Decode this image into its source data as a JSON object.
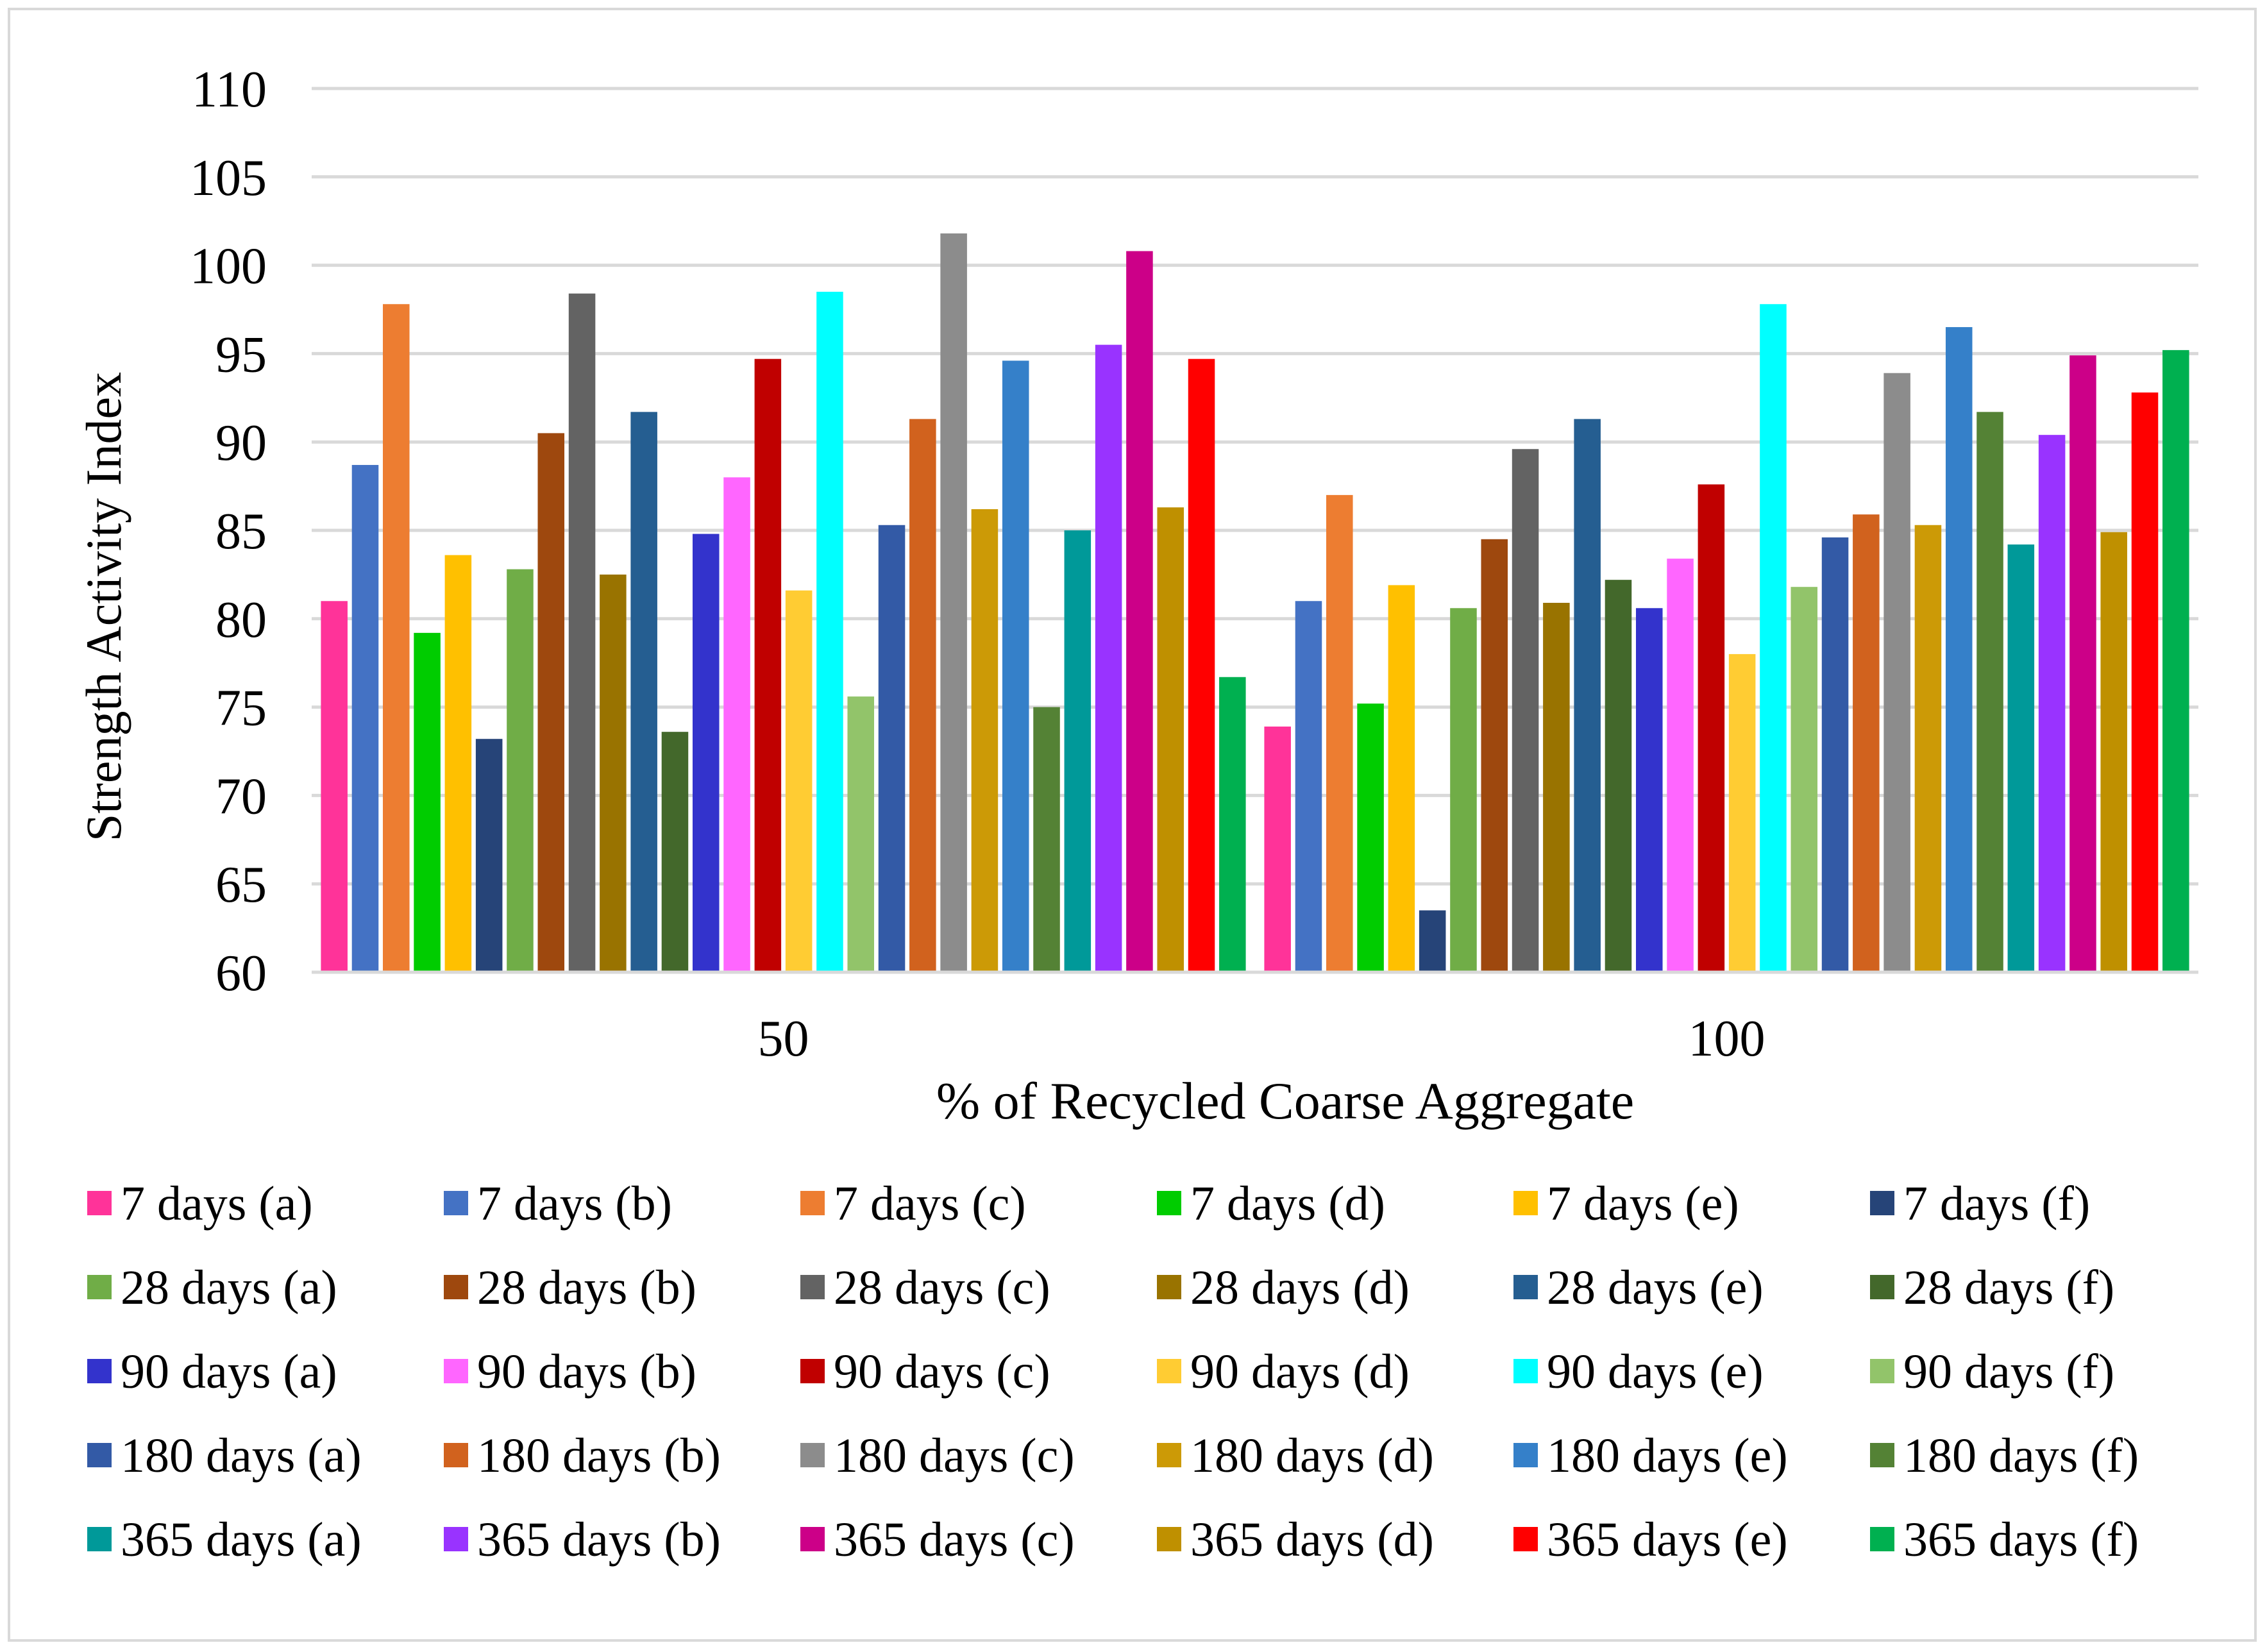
{
  "chart_data": {
    "type": "bar",
    "title": "",
    "xlabel": "% of Recycled Coarse Aggregate",
    "ylabel": "Strength Activity Index",
    "ylim": [
      60,
      110
    ],
    "ytick_step": 5,
    "grid": true,
    "legend_position": "bottom",
    "categories": [
      "50",
      "100"
    ],
    "series": [
      {
        "name": "7 days (a)",
        "color": "#FF3399",
        "values": [
          81.0,
          73.9
        ]
      },
      {
        "name": "7 days (b)",
        "color": "#4472C4",
        "values": [
          88.7,
          81.0
        ]
      },
      {
        "name": "7 days (c)",
        "color": "#ED7D31",
        "values": [
          97.8,
          87.0
        ]
      },
      {
        "name": "7 days (d)",
        "color": "#00CC00",
        "values": [
          79.2,
          75.2
        ]
      },
      {
        "name": "7 days (e)",
        "color": "#FFC000",
        "values": [
          83.6,
          81.9
        ]
      },
      {
        "name": "7 days (f)",
        "color": "#264478",
        "values": [
          73.2,
          63.5
        ]
      },
      {
        "name": "28 days (a)",
        "color": "#70AD47",
        "values": [
          82.8,
          80.6
        ]
      },
      {
        "name": "28 days (b)",
        "color": "#9E480E",
        "values": [
          90.5,
          84.5
        ]
      },
      {
        "name": "28 days (c)",
        "color": "#636363",
        "values": [
          98.4,
          89.6
        ]
      },
      {
        "name": "28 days (d)",
        "color": "#997300",
        "values": [
          82.5,
          80.9
        ]
      },
      {
        "name": "28 days (e)",
        "color": "#255E91",
        "values": [
          91.7,
          91.3
        ]
      },
      {
        "name": "28 days (f)",
        "color": "#43682B",
        "values": [
          73.6,
          82.2
        ]
      },
      {
        "name": "90 days (a)",
        "color": "#3333CC",
        "values": [
          84.8,
          80.6
        ]
      },
      {
        "name": "90 days (b)",
        "color": "#FF66FF",
        "values": [
          88.0,
          83.4
        ]
      },
      {
        "name": "90 days (c)",
        "color": "#C00000",
        "values": [
          94.7,
          87.6
        ]
      },
      {
        "name": "90 days (d)",
        "color": "#FFCC33",
        "values": [
          81.6,
          78.0
        ]
      },
      {
        "name": "90 days (e)",
        "color": "#00FFFF",
        "values": [
          98.5,
          97.8
        ]
      },
      {
        "name": "90 days (f)",
        "color": "#92C46A",
        "values": [
          75.6,
          81.8
        ]
      },
      {
        "name": "180 days (a)",
        "color": "#335AA6",
        "values": [
          85.3,
          84.6
        ]
      },
      {
        "name": "180 days (b)",
        "color": "#D1621E",
        "values": [
          91.3,
          85.9
        ]
      },
      {
        "name": "180 days (c)",
        "color": "#8C8C8C",
        "values": [
          101.8,
          93.9
        ]
      },
      {
        "name": "180 days (d)",
        "color": "#CC9A06",
        "values": [
          86.2,
          85.3
        ]
      },
      {
        "name": "180 days (e)",
        "color": "#3580C9",
        "values": [
          94.6,
          96.5
        ]
      },
      {
        "name": "180 days (f)",
        "color": "#548235",
        "values": [
          75.0,
          91.7
        ]
      },
      {
        "name": "365 days (a)",
        "color": "#009999",
        "values": [
          85.0,
          84.2
        ]
      },
      {
        "name": "365 days (b)",
        "color": "#9933FF",
        "values": [
          95.5,
          90.4
        ]
      },
      {
        "name": "365 days (c)",
        "color": "#CC0088",
        "values": [
          100.8,
          94.9
        ]
      },
      {
        "name": "365 days (d)",
        "color": "#BF9000",
        "values": [
          86.3,
          84.9
        ]
      },
      {
        "name": "365 days (e)",
        "color": "#FF0000",
        "values": [
          94.7,
          92.8
        ]
      },
      {
        "name": "365 days (f)",
        "color": "#00B050",
        "values": [
          76.7,
          95.2
        ]
      }
    ]
  }
}
